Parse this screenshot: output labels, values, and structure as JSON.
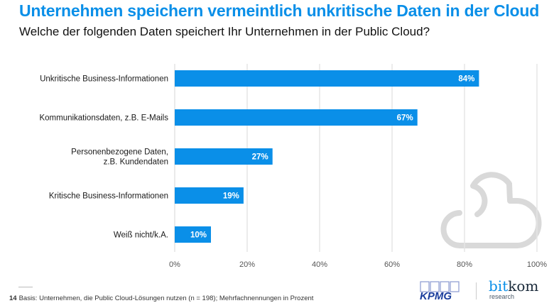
{
  "header": {
    "title": "Unternehmen speichern vermeintlich unkritische Daten in der Cloud",
    "subtitle": "Welche der folgenden Daten speichert Ihr Unternehmen in der Public Cloud?"
  },
  "chart_data": {
    "type": "bar",
    "orientation": "horizontal",
    "title": "Unternehmen speichern vermeintlich unkritische Daten in der Cloud",
    "subtitle": "Welche der folgenden Daten speichert Ihr Unternehmen in der Public Cloud?",
    "categories": [
      [
        "Unkritische Business-Informationen"
      ],
      [
        "Kommunikationsdaten, z.B. E-Mails"
      ],
      [
        "Personenbezogene Daten,",
        "z.B. Kundendaten"
      ],
      [
        "Kritische Business-Informationen"
      ],
      [
        "Weiß nicht/k.A."
      ]
    ],
    "values": [
      84,
      67,
      27,
      19,
      10
    ],
    "value_labels": [
      "84%",
      "67%",
      "27%",
      "19%",
      "10%"
    ],
    "xlabel": "",
    "ylabel": "",
    "xlim": [
      0,
      100
    ],
    "xticks": [
      0,
      20,
      40,
      60,
      80,
      100
    ],
    "xtick_labels": [
      "0%",
      "20%",
      "40%",
      "60%",
      "80%",
      "100%"
    ],
    "grid": true,
    "bar_color": "#0a8fe8",
    "legend": "none"
  },
  "decoration": {
    "background_icon": "cloud-icon",
    "icon_color": "#d9d9d9"
  },
  "footer": {
    "page_number": "14",
    "note": "Basis: Unternehmen, die Public Cloud-Lösungen nutzen (n = 198); Mehrfachnennungen in Prozent",
    "logos": {
      "kpmg": "KPMG",
      "bitkom_bit": "bit",
      "bitkom_kom": "kom",
      "bitkom_research": "research"
    },
    "kpmg_color": "#1a3d9c",
    "bitkom_color": "#0a8fe8"
  }
}
